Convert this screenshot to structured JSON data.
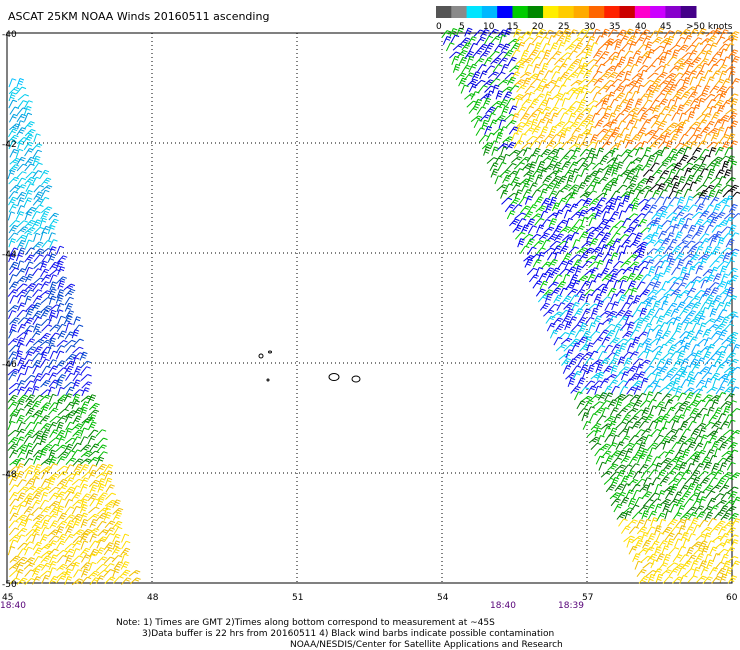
{
  "title": "ASCAT 25KM NOAA Winds 20160511 ascending",
  "legend": {
    "labels": [
      "0",
      "5",
      "10",
      "15",
      "20",
      "25",
      "30",
      "35",
      "40",
      "45",
      ">50 knots"
    ],
    "colors": [
      "#555555",
      "#8a8a8a",
      "#00e5ff",
      "#00b8ff",
      "#0000ff",
      "#00cc00",
      "#008800",
      "#ffee00",
      "#ffcc00",
      "#ffaa00",
      "#ff6600",
      "#ff2200",
      "#cc0000",
      "#ff00cc",
      "#cc00ff",
      "#8800cc",
      "#440088"
    ]
  },
  "axes": {
    "x_ticks": [
      "45",
      "48",
      "51",
      "54",
      "57",
      "60"
    ],
    "y_ticks": [
      "-40",
      "-42",
      "-44",
      "-46",
      "-48",
      "-50"
    ]
  },
  "times": {
    "left": "18:40",
    "mid1": "18:40",
    "mid2": "18:39"
  },
  "notes": {
    "line1": "Note: 1) Times are GMT 2)Times along bottom correspond to measurement at ~45S",
    "line2": "3)Data buffer is 22 hrs from 20160511 4) Black wind barbs indicate possible contamination",
    "line3": "NOAA/NESDIS/Center for Satellite Applications and Research"
  }
}
